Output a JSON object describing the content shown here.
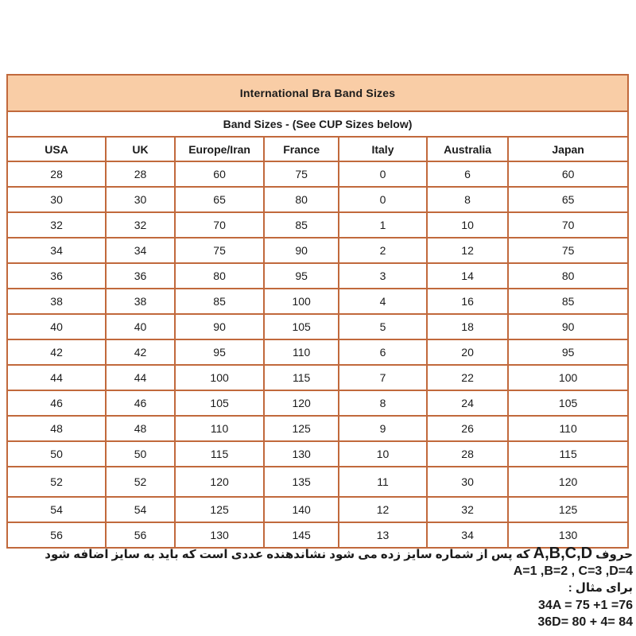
{
  "table": {
    "title": "International Bra Band Sizes",
    "subtitle": "Band Sizes - (See CUP Sizes below)",
    "columns": [
      "USA",
      "UK",
      "Europe/Iran",
      "France",
      "Italy",
      "Australia",
      "Japan"
    ],
    "rows": [
      [
        "28",
        "28",
        "60",
        "75",
        "0",
        "6",
        "60"
      ],
      [
        "30",
        "30",
        "65",
        "80",
        "0",
        "8",
        "65"
      ],
      [
        "32",
        "32",
        "70",
        "85",
        "1",
        "10",
        "70"
      ],
      [
        "34",
        "34",
        "75",
        "90",
        "2",
        "12",
        "75"
      ],
      [
        "36",
        "36",
        "80",
        "95",
        "3",
        "14",
        "80"
      ],
      [
        "38",
        "38",
        "85",
        "100",
        "4",
        "16",
        "85"
      ],
      [
        "40",
        "40",
        "90",
        "105",
        "5",
        "18",
        "90"
      ],
      [
        "42",
        "42",
        "95",
        "110",
        "6",
        "20",
        "95"
      ],
      [
        "44",
        "44",
        "100",
        "115",
        "7",
        "22",
        "100"
      ],
      [
        "46",
        "46",
        "105",
        "120",
        "8",
        "24",
        "105"
      ],
      [
        "48",
        "48",
        "110",
        "125",
        "9",
        "26",
        "110"
      ],
      [
        "50",
        "50",
        "115",
        "130",
        "10",
        "28",
        "115"
      ],
      [
        "52",
        "52",
        "120",
        "135",
        "11",
        "30",
        "120"
      ],
      [
        "54",
        "54",
        "125",
        "140",
        "12",
        "32",
        "125"
      ],
      [
        "56",
        "56",
        "130",
        "145",
        "13",
        "34",
        "130"
      ]
    ],
    "column_widths_pct": [
      15.9,
      11.1,
      14.4,
      12.0,
      14.2,
      13.1,
      19.3
    ]
  },
  "notes": {
    "line1_prefix": "حروف",
    "line1_letters": "A,B,C,D",
    "line1_suffix": "که پس از شماره سایز زده می شود نشاندهنده عددی است که باید به سایز اضافه شود",
    "line2": "A=1 ,B=2 , C=3 ,D=4",
    "line3": "برای مثال :",
    "line4": "34A = 75 +1 =76",
    "line5": "36D= 80 + 4= 84"
  },
  "colors": {
    "header_bg": "#f9cda6",
    "border": "#c1693c",
    "text": "#1b1b1b"
  }
}
